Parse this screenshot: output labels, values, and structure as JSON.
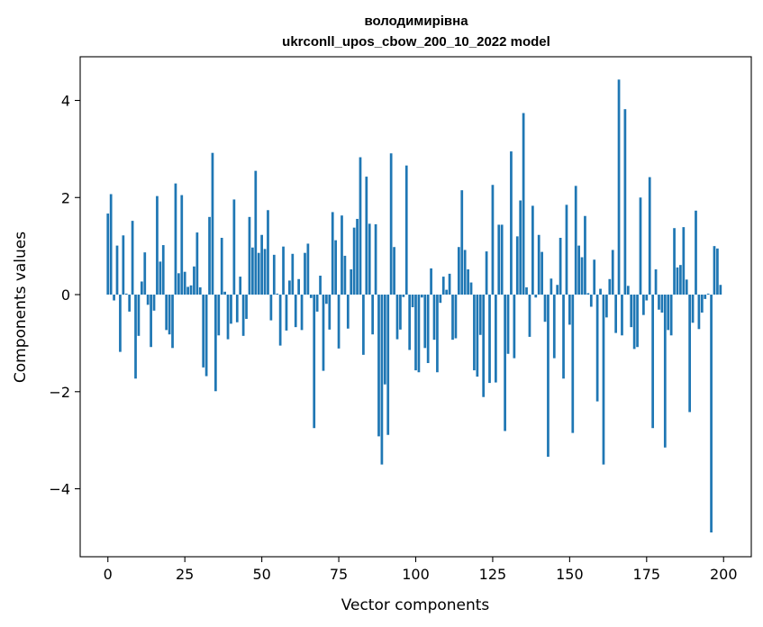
{
  "chart_data": {
    "type": "bar",
    "title_line1": "володимирівна",
    "title_line2": "ukrconll_upos_cbow_200_10_2022 model",
    "xlabel": "Vector components",
    "ylabel": "Components values",
    "xlim": [
      -9,
      209
    ],
    "ylim": [
      -5.4,
      4.9
    ],
    "xticks": [
      0,
      25,
      50,
      75,
      100,
      125,
      150,
      175,
      200
    ],
    "xtick_labels": [
      "0",
      "25",
      "50",
      "75",
      "100",
      "125",
      "150",
      "175",
      "200"
    ],
    "yticks": [
      -4,
      -2,
      0,
      2,
      4
    ],
    "ytick_labels": [
      "−4",
      "−2",
      "0",
      "2",
      "4"
    ],
    "bar_color": "#1f77b4",
    "values": [
      1.67,
      2.07,
      -0.12,
      1.01,
      -1.18,
      1.22,
      0.02,
      -0.35,
      1.52,
      -1.73,
      -0.85,
      0.27,
      0.87,
      -0.21,
      -1.08,
      -0.33,
      2.03,
      0.68,
      1.02,
      -0.73,
      -0.82,
      -1.1,
      2.29,
      0.44,
      2.05,
      0.47,
      0.16,
      0.19,
      0.58,
      1.28,
      0.15,
      -1.5,
      -1.68,
      1.6,
      2.92,
      -1.99,
      -0.84,
      1.17,
      0.06,
      -0.92,
      -0.6,
      1.96,
      -0.57,
      0.37,
      -0.85,
      -0.5,
      1.6,
      0.97,
      2.55,
      0.86,
      1.23,
      0.94,
      1.74,
      -0.53,
      0.82,
      0.02,
      -1.05,
      0.99,
      -0.74,
      0.29,
      0.84,
      -0.67,
      0.32,
      -0.73,
      0.86,
      1.05,
      -0.07,
      -2.75,
      -0.35,
      0.39,
      -1.57,
      -0.19,
      -0.72,
      1.7,
      1.12,
      -1.11,
      1.63,
      0.8,
      -0.7,
      0.52,
      1.38,
      1.56,
      2.83,
      -1.24,
      2.43,
      1.46,
      -0.82,
      1.45,
      -2.92,
      -3.5,
      -1.85,
      -2.89,
      2.91,
      0.98,
      -0.92,
      -0.72,
      -0.05,
      2.66,
      -1.14,
      -0.26,
      -1.56,
      -1.6,
      -0.06,
      -1.1,
      -1.41,
      0.54,
      -0.93,
      -1.6,
      -0.17,
      0.37,
      0.1,
      0.43,
      -0.93,
      -0.9,
      0.98,
      2.15,
      0.92,
      0.52,
      0.25,
      -1.56,
      -1.69,
      -0.83,
      -2.11,
      0.89,
      -1.82,
      2.26,
      -1.81,
      1.44,
      1.44,
      -2.81,
      -1.22,
      2.95,
      -1.31,
      1.2,
      1.94,
      3.74,
      0.15,
      -0.87,
      1.83,
      -0.06,
      1.23,
      0.88,
      -0.56,
      -3.34,
      0.33,
      -1.31,
      0.2,
      1.17,
      -1.73,
      1.85,
      -0.62,
      -2.85,
      2.24,
      1.01,
      0.77,
      1.62,
      0.03,
      -0.25,
      0.72,
      -2.2,
      0.12,
      -3.5,
      -0.47,
      0.32,
      0.92,
      -0.79,
      4.43,
      -0.84,
      3.82,
      0.18,
      -0.67,
      -1.12,
      -1.08,
      2.0,
      -0.42,
      -0.12,
      2.42,
      -2.75,
      0.52,
      -0.31,
      -0.37,
      -3.15,
      -0.73,
      -0.84,
      1.37,
      0.56,
      0.61,
      1.39,
      0.31,
      -2.42,
      -0.58,
      1.73,
      -0.71,
      -0.37,
      -0.09,
      0.02,
      -4.9,
      1.0,
      0.95,
      0.2
    ]
  }
}
